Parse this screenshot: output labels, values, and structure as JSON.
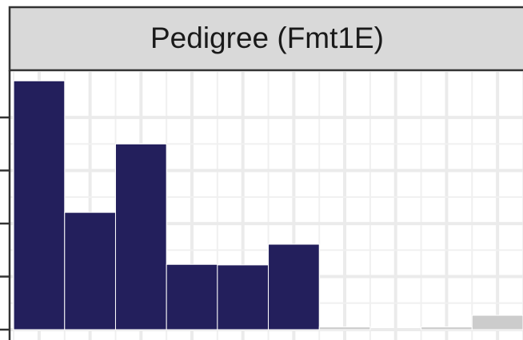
{
  "chart_data": {
    "type": "histogram",
    "title": "Pedigree (Fmt1E)",
    "bins": [
      0,
      1,
      2,
      3,
      4,
      5,
      6,
      7,
      8,
      9,
      10
    ],
    "values": [
      4.69,
      2.21,
      3.5,
      1.23,
      1.22,
      1.61,
      0.05,
      0,
      0.05,
      0.27
    ],
    "colors": [
      "#231f5c",
      "#231f5c",
      "#231f5c",
      "#231f5c",
      "#231f5c",
      "#231f5c",
      "#cccccc",
      "#cccccc",
      "#cccccc",
      "#cccccc"
    ],
    "xlim": [
      -0.08,
      10
    ],
    "xticks": [
      0.5,
      1.5,
      2.5,
      3.5,
      4.5,
      5.5,
      6.5,
      7.5,
      8.5,
      9.5
    ],
    "ylim": [
      -0.075,
      4.86
    ],
    "yticks": [
      0,
      1,
      2,
      3,
      4
    ],
    "grid": true
  }
}
